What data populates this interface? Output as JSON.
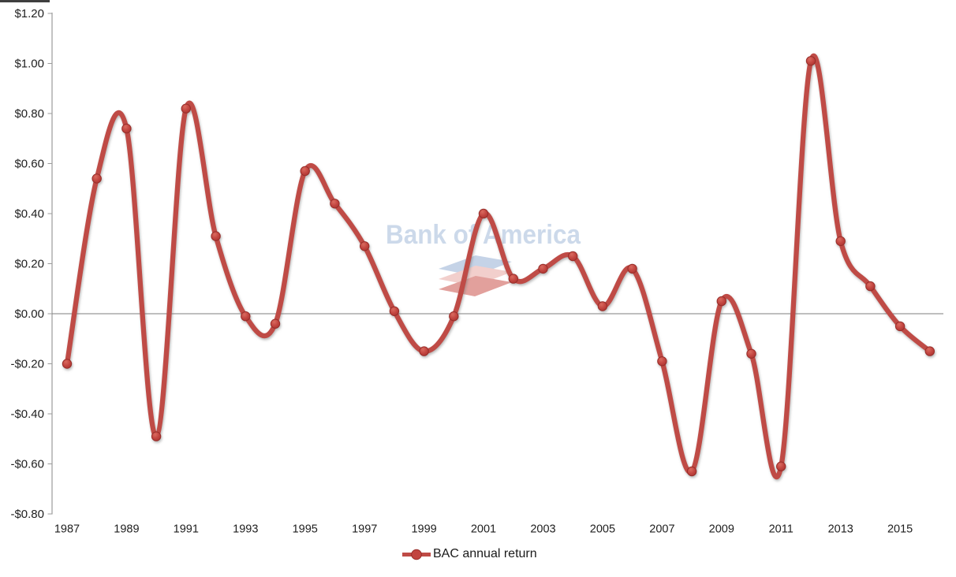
{
  "chart_data": {
    "type": "line",
    "title": "",
    "x": [
      1987,
      1988,
      1989,
      1990,
      1991,
      1992,
      1993,
      1994,
      1995,
      1996,
      1997,
      1998,
      1999,
      2000,
      2001,
      2002,
      2003,
      2004,
      2005,
      2006,
      2007,
      2008,
      2009,
      2010,
      2011,
      2012,
      2013,
      2014,
      2015,
      2016
    ],
    "series": [
      {
        "name": "BAC annual return",
        "values": [
          -0.2,
          0.54,
          0.74,
          -0.49,
          0.82,
          0.31,
          -0.01,
          -0.04,
          0.57,
          0.44,
          0.27,
          0.01,
          -0.15,
          -0.01,
          0.4,
          0.14,
          0.18,
          0.23,
          0.03,
          0.18,
          -0.19,
          -0.63,
          0.05,
          -0.16,
          -0.61,
          1.01,
          0.29,
          0.11,
          -0.05,
          -0.15
        ]
      }
    ],
    "x_tick_labels": [
      "1987",
      "1989",
      "1991",
      "1993",
      "1995",
      "1997",
      "1999",
      "2001",
      "2003",
      "2005",
      "2007",
      "2009",
      "2011",
      "2013",
      "2015"
    ],
    "y_tick_labels": [
      "$1.20",
      "$1.00",
      "$0.80",
      "$0.60",
      "$0.40",
      "$0.20",
      "$0.00",
      "-$0.20",
      "-$0.40",
      "-$0.60",
      "-$0.80"
    ],
    "y_tick_values": [
      1.2,
      1.0,
      0.8,
      0.6,
      0.4,
      0.2,
      0.0,
      -0.2,
      -0.4,
      -0.6,
      -0.8
    ],
    "ylim": [
      -0.8,
      1.2
    ],
    "xlabel": "",
    "ylabel": "",
    "grid": "zero-line-only",
    "legend_position": "bottom-center",
    "line_style": "smooth",
    "marker": "circle",
    "colors": {
      "line": "#bf4b46",
      "marker_highlight": "#d96a5f",
      "marker_fill": "#c24540",
      "marker_edge": "#a93430",
      "marker_stroke": "#982e2a",
      "axis": "#9b9b9b",
      "zero_line": "#7f7f7f",
      "label": "#1f1f1f"
    }
  },
  "legend": {
    "label": "BAC annual return"
  },
  "watermark": {
    "text": "Bank of America",
    "text_color": "#ccd9ea",
    "flag_colors": [
      "#c5d3e7",
      "#f2cfcc",
      "#e2a09c"
    ]
  }
}
